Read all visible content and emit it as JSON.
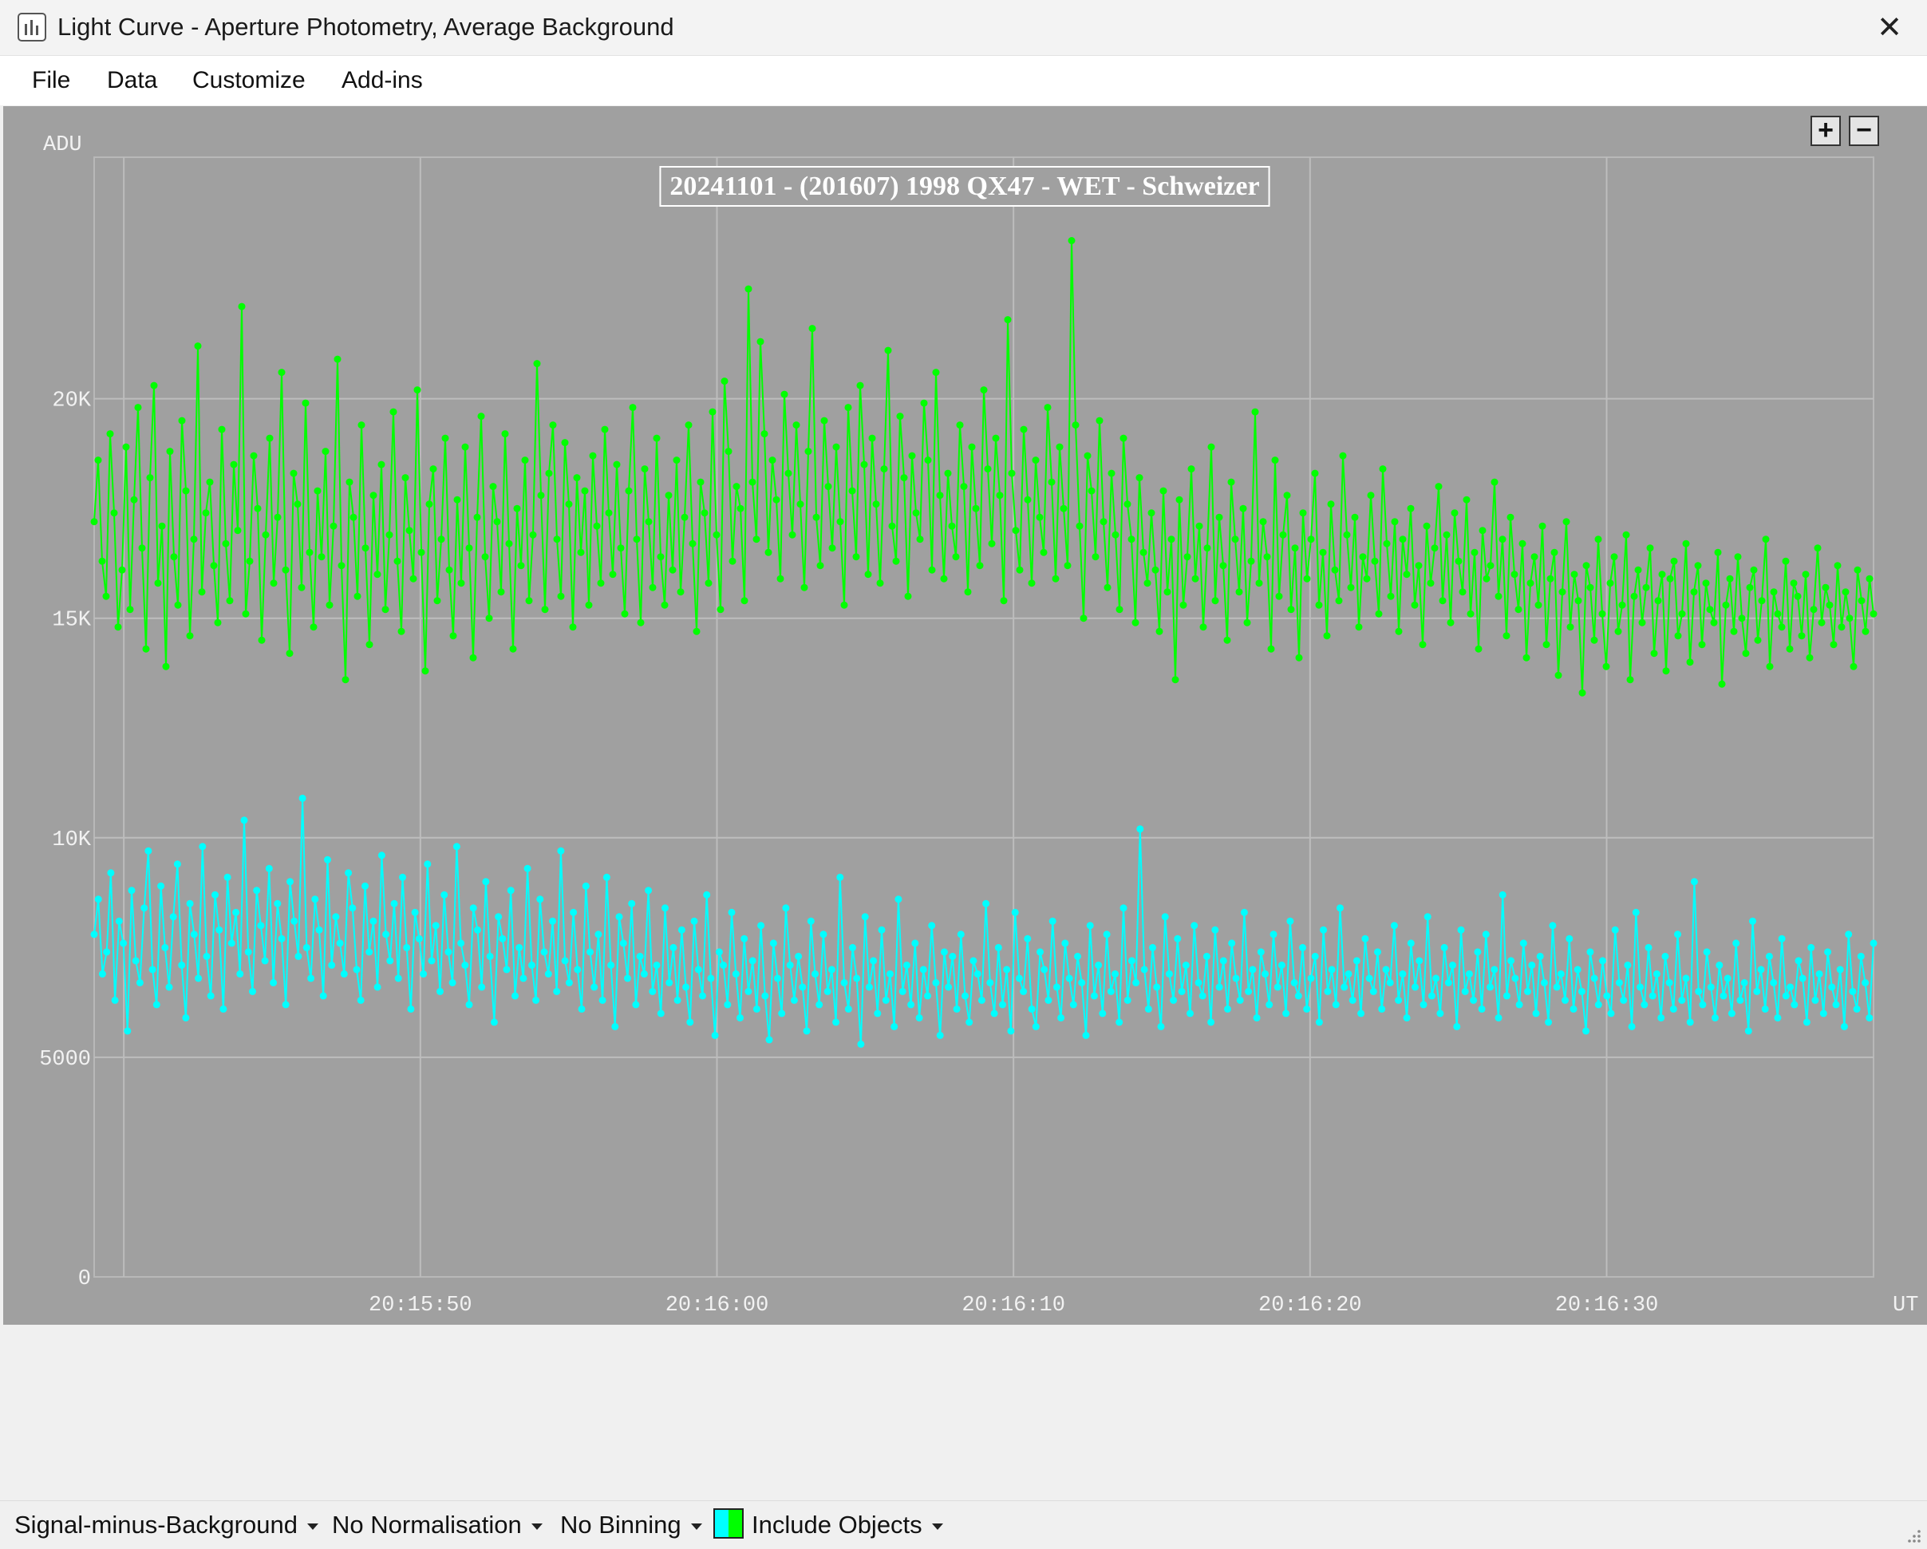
{
  "window": {
    "title": "Light Curve - Aperture Photometry, Average Background",
    "app_icon": "light-curve-app-icon",
    "close_icon": "close-icon",
    "close_glyph": "✕"
  },
  "menu": {
    "items": [
      {
        "label": "File"
      },
      {
        "label": "Data"
      },
      {
        "label": "Customize"
      },
      {
        "label": "Add-ins"
      }
    ]
  },
  "chart_controls": {
    "zoom_in": "+",
    "zoom_out": "−"
  },
  "chart_data": {
    "type": "line",
    "title": "20241101 - (201607) 1998 QX47 - WET - Schweizer",
    "ylabel": "ADU",
    "xlabel": "UT",
    "ylim": [
      0,
      25500
    ],
    "xlim": [
      "20:15:39",
      "20:16:39"
    ],
    "y_ticks": [
      {
        "value": 0,
        "label": "0"
      },
      {
        "value": 5000,
        "label": "5000"
      },
      {
        "value": 10000,
        "label": "10K"
      },
      {
        "value": 15000,
        "label": "15K"
      },
      {
        "value": 20000,
        "label": "20K"
      }
    ],
    "x_ticks": [
      {
        "value": "20:15:40",
        "label": ""
      },
      {
        "value": "20:15:50",
        "label": "20:15:50"
      },
      {
        "value": "20:16:00",
        "label": "20:16:00"
      },
      {
        "value": "20:16:10",
        "label": "20:16:10"
      },
      {
        "value": "20:16:20",
        "label": "20:16:20"
      },
      {
        "value": "20:16:30",
        "label": "20:16:30"
      }
    ],
    "grid": true,
    "legend": "none",
    "series": [
      {
        "color": "#00ff00",
        "x_start": "20:15:39",
        "x_end": "20:16:39",
        "values": [
          17200,
          18600,
          16300,
          15500,
          19200,
          17400,
          14800,
          16100,
          18900,
          15200,
          17700,
          19800,
          16600,
          14300,
          18200,
          20300,
          15800,
          17100,
          13900,
          18800,
          16400,
          15300,
          19500,
          17900,
          14600,
          16800,
          21200,
          15600,
          17400,
          18100,
          16200,
          14900,
          19300,
          16700,
          15400,
          18500,
          17000,
          22100,
          15100,
          16300,
          18700,
          17500,
          14500,
          16900,
          19100,
          15800,
          17300,
          20600,
          16100,
          14200,
          18300,
          17600,
          15700,
          19900,
          16500,
          14800,
          17900,
          16400,
          18800,
          15300,
          17100,
          20900,
          16200,
          13600,
          18100,
          17300,
          15500,
          19400,
          16600,
          14400,
          17800,
          16000,
          18500,
          15200,
          16900,
          19700,
          16300,
          14700,
          18200,
          17000,
          15900,
          20200,
          16500,
          13800,
          17600,
          18400,
          15400,
          16800,
          19100,
          16100,
          14600,
          17700,
          15800,
          18900,
          16600,
          14100,
          17300,
          19600,
          16400,
          15000,
          18000,
          17200,
          15600,
          19200,
          16700,
          14300,
          17500,
          16200,
          18600,
          15400,
          16900,
          20800,
          17800,
          15200,
          18300,
          19400,
          16800,
          15500,
          19000,
          17600,
          14800,
          18200,
          16500,
          17900,
          15300,
          18700,
          17100,
          15800,
          19300,
          17400,
          16000,
          18500,
          16600,
          15100,
          17900,
          19800,
          16800,
          14900,
          18400,
          17200,
          15700,
          19100,
          16400,
          15300,
          17800,
          16100,
          18600,
          15600,
          17300,
          19400,
          16700,
          14700,
          18100,
          17400,
          15800,
          19700,
          16900,
          15200,
          20400,
          18800,
          16300,
          18000,
          17500,
          15400,
          22500,
          18100,
          16800,
          21300,
          19200,
          16500,
          18600,
          17700,
          15900,
          20100,
          18300,
          16900,
          19400,
          17600,
          15700,
          18800,
          21600,
          17300,
          16200,
          19500,
          18000,
          16600,
          18900,
          17200,
          15300,
          19800,
          17900,
          16400,
          20300,
          18500,
          16000,
          19100,
          17600,
          15800,
          18400,
          21100,
          17100,
          16300,
          19600,
          18200,
          15500,
          18700,
          17400,
          16800,
          19900,
          18600,
          16100,
          20600,
          17800,
          15900,
          18300,
          17100,
          16400,
          19400,
          18000,
          15600,
          18900,
          17500,
          16200,
          20200,
          18400,
          16700,
          19100,
          17800,
          15400,
          21800,
          18300,
          17000,
          16100,
          19300,
          17700,
          15800,
          18600,
          17300,
          16500,
          19800,
          18100,
          15900,
          18900,
          17500,
          16200,
          23600,
          19400,
          17100,
          15000,
          18700,
          17900,
          16400,
          19500,
          17200,
          15700,
          18300,
          16900,
          15200,
          19100,
          17600,
          16800,
          14900,
          18200,
          16500,
          15800,
          17400,
          16100,
          14700,
          17900,
          15600,
          16800,
          13600,
          17700,
          15300,
          16400,
          18400,
          15900,
          17100,
          14800,
          16600,
          18900,
          15400,
          17300,
          16200,
          14500,
          18100,
          16800,
          15600,
          17500,
          14900,
          16300,
          19700,
          15800,
          17200,
          16400,
          14300,
          18600,
          15500,
          16900,
          17800,
          15200,
          16600,
          14100,
          17400,
          15900,
          16800,
          18300,
          15300,
          16500,
          14600,
          17600,
          16100,
          15400,
          18700,
          16900,
          15700,
          17300,
          14800,
          16400,
          15900,
          17800,
          16300,
          15100,
          18400,
          16700,
          15500,
          17200,
          14700,
          16800,
          16000,
          17500,
          15300,
          16200,
          14400,
          17100,
          15800,
          16600,
          18000,
          15400,
          16900,
          14900,
          17400,
          16300,
          15600,
          17700,
          15100,
          16500,
          14300,
          17000,
          15900,
          16200,
          18100,
          15500,
          16800,
          14600,
          17300,
          16000,
          15200,
          16700,
          14100,
          15800,
          16400,
          15300,
          17100,
          14400,
          15900,
          16500,
          13700,
          15600,
          17200,
          14800,
          16000,
          15400,
          13300,
          16200,
          15700,
          14500,
          16800,
          15100,
          13900,
          15800,
          16400,
          14700,
          15300,
          16900,
          13600,
          15500,
          16100,
          14900,
          15700,
          16600,
          14200,
          15400,
          16000,
          13800,
          15900,
          16300,
          14600,
          15100,
          16700,
          14000,
          15600,
          16200,
          14400,
          15800,
          15200,
          14900,
          16500,
          13500,
          15300,
          15900,
          14700,
          16400,
          15000,
          14200,
          15700,
          16100,
          14500,
          15400,
          16800,
          13900,
          15600,
          15100,
          14800,
          16300,
          14300,
          15800,
          15500,
          14600,
          16000,
          14100,
          15200,
          16600,
          14900,
          15700,
          15300,
          14400,
          16200,
          14800,
          15600,
          15000,
          13900,
          16100,
          15400,
          14700,
          15900,
          15100
        ]
      },
      {
        "color": "#00ffff",
        "x_start": "20:15:39",
        "x_end": "20:16:39",
        "values": [
          7800,
          8600,
          6900,
          7400,
          9200,
          6300,
          8100,
          7600,
          5600,
          8800,
          7200,
          6700,
          8400,
          9700,
          7000,
          6200,
          8900,
          7500,
          6600,
          8200,
          9400,
          7100,
          5900,
          8500,
          7800,
          6800,
          9800,
          7300,
          6400,
          8700,
          7900,
          6100,
          9100,
          7600,
          8300,
          6900,
          10400,
          7400,
          6500,
          8800,
          8000,
          7200,
          9300,
          6700,
          8500,
          7700,
          6200,
          9000,
          8100,
          7300,
          10900,
          7500,
          6800,
          8600,
          7900,
          6400,
          9500,
          7100,
          8200,
          7600,
          6900,
          9200,
          8400,
          7000,
          6300,
          8900,
          7400,
          8100,
          6600,
          9600,
          7800,
          7200,
          8500,
          6800,
          9100,
          7500,
          6100,
          8300,
          7700,
          6900,
          9400,
          7200,
          8000,
          6500,
          8700,
          7400,
          6700,
          9800,
          7600,
          7100,
          6200,
          8400,
          7900,
          6600,
          9000,
          7300,
          5800,
          8200,
          7700,
          7000,
          8800,
          6400,
          7500,
          6800,
          9300,
          7100,
          6300,
          8600,
          7400,
          6900,
          8100,
          6500,
          9700,
          7200,
          6700,
          8300,
          7000,
          6100,
          8900,
          7400,
          6600,
          7800,
          6300,
          9100,
          7100,
          5700,
          8200,
          7600,
          6800,
          8500,
          6200,
          7300,
          6900,
          8800,
          6500,
          7100,
          6000,
          8400,
          6700,
          7500,
          6300,
          7900,
          6600,
          5800,
          8100,
          7000,
          6400,
          8700,
          6800,
          5500,
          7400,
          7100,
          6200,
          8300,
          6900,
          5900,
          7700,
          6500,
          7200,
          6100,
          8000,
          6400,
          5400,
          7600,
          6800,
          6000,
          8400,
          7100,
          6300,
          7300,
          6600,
          5600,
          8100,
          6900,
          6200,
          7800,
          6500,
          7000,
          5800,
          9100,
          6700,
          6100,
          7500,
          6800,
          5300,
          8200,
          6600,
          7200,
          6000,
          7900,
          6300,
          6900,
          5700,
          8600,
          6500,
          7100,
          6200,
          7600,
          5900,
          7000,
          6400,
          8000,
          6700,
          5500,
          7400,
          6600,
          7300,
          6100,
          7800,
          6400,
          5800,
          7200,
          6900,
          6300,
          8500,
          6700,
          6000,
          7500,
          6200,
          7000,
          5600,
          8300,
          6800,
          6500,
          7700,
          6100,
          5700,
          7400,
          7000,
          6300,
          8100,
          6600,
          5900,
          7600,
          6800,
          6200,
          7300,
          6700,
          5500,
          8000,
          6400,
          7100,
          6000,
          7800,
          6500,
          6900,
          5800,
          8400,
          6300,
          7200,
          6700,
          10200,
          7000,
          6100,
          7500,
          6600,
          5700,
          8200,
          6900,
          6300,
          7700,
          6500,
          7100,
          6000,
          8000,
          6700,
          6400,
          7300,
          5800,
          7900,
          6600,
          7200,
          6100,
          7600,
          6800,
          6300,
          8300,
          6500,
          7000,
          5900,
          7400,
          6900,
          6200,
          7800,
          6600,
          7100,
          6000,
          8100,
          6700,
          6400,
          7500,
          6100,
          6800,
          7300,
          5800,
          7900,
          6500,
          7000,
          6200,
          8400,
          6600,
          6900,
          6300,
          7200,
          6000,
          7700,
          6800,
          6500,
          7400,
          6100,
          7000,
          6700,
          8000,
          6300,
          6900,
          5900,
          7600,
          6600,
          7200,
          6200,
          8200,
          6400,
          6800,
          6000,
          7500,
          6700,
          7100,
          5700,
          7900,
          6500,
          6900,
          6300,
          7400,
          6100,
          7800,
          6600,
          7000,
          5900,
          8700,
          6400,
          7200,
          6800,
          6200,
          7600,
          6500,
          7100,
          6000,
          7300,
          6700,
          5800,
          8000,
          6600,
          6900,
          6300,
          7700,
          6100,
          7000,
          6500,
          5600,
          7400,
          6800,
          6200,
          7200,
          6400,
          6000,
          7900,
          6700,
          6300,
          7100,
          5700,
          8300,
          6600,
          6200,
          7500,
          6400,
          6900,
          5900,
          7300,
          6700,
          6100,
          7800,
          6300,
          6800,
          5800,
          9000,
          6500,
          6200,
          7400,
          6600,
          5900,
          7100,
          6400,
          6800,
          6000,
          7600,
          6300,
          6700,
          5600,
          8100,
          6500,
          7000,
          6100,
          7300,
          6700,
          5900,
          7700,
          6400,
          6600,
          6200,
          7200,
          6800,
          5800,
          7500,
          6300,
          6900,
          6000,
          7400,
          6600,
          6200,
          7000,
          5700,
          7800,
          6500,
          6100,
          7300,
          6700,
          5900,
          7600
        ]
      }
    ]
  },
  "status": {
    "signal_mode": "Signal-minus-Background",
    "normalisation": "No Normalisation",
    "binning": "No Binning",
    "objects": "Include Objects",
    "grip_icon": "resize-grip-icon"
  }
}
